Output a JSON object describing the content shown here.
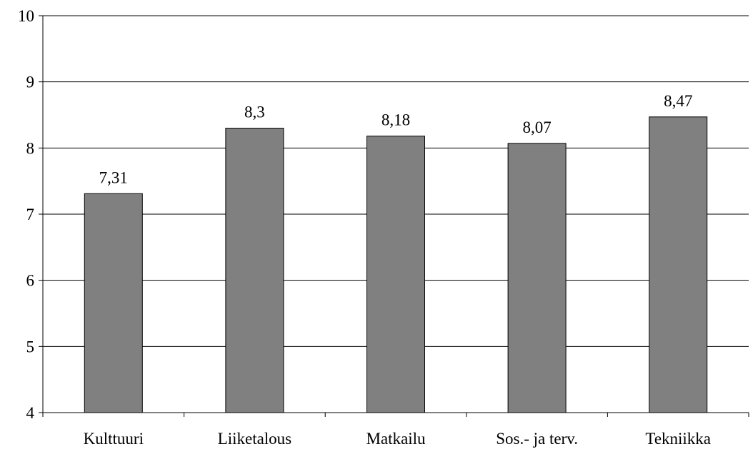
{
  "chart_data": {
    "type": "bar",
    "categories": [
      "Kulttuuri",
      "Liiketalous",
      "Matkailu",
      "Sos.- ja terv.",
      "Tekniikka"
    ],
    "values": [
      7.31,
      8.3,
      8.18,
      8.07,
      8.47
    ],
    "data_labels": [
      "7,31",
      "8,3",
      "8,18",
      "8,07",
      "8,47"
    ],
    "title": "",
    "xlabel": "",
    "ylabel": "",
    "ylim": [
      4,
      10
    ],
    "yticks": [
      4,
      5,
      6,
      7,
      8,
      9,
      10
    ],
    "ytick_labels": [
      "4",
      "5",
      "6",
      "7",
      "8",
      "9",
      "10"
    ],
    "grid": true,
    "legend": "none",
    "bar_color": "#808080",
    "bar_edge_color": "#000000",
    "grid_color": "#000000"
  }
}
